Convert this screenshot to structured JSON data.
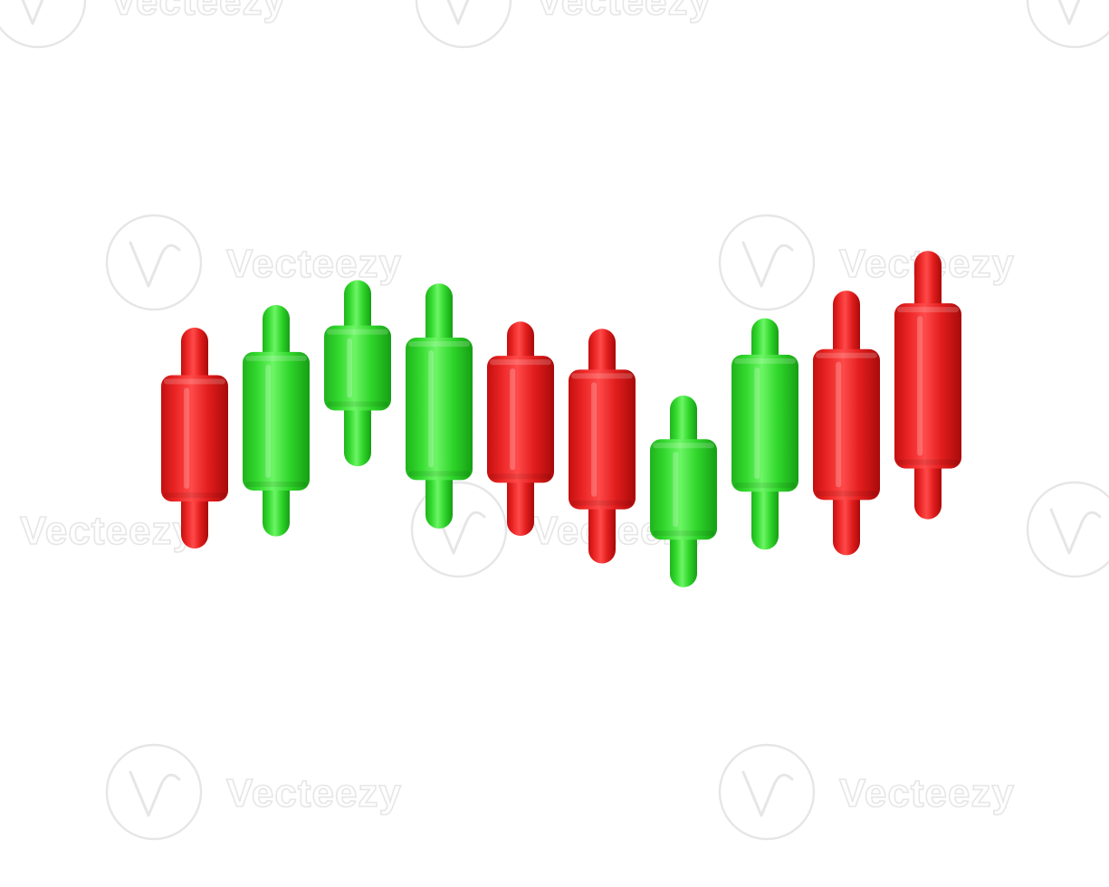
{
  "watermark": {
    "text": "Vecteezy"
  },
  "colors": {
    "up": "#2fd62a",
    "down": "#e21d1d",
    "background": "#ffffff"
  },
  "chart_data": {
    "type": "candlestick",
    "title": "",
    "xlabel": "",
    "ylabel": "",
    "ylim": [
      0,
      100
    ],
    "grid": false,
    "legend": "none",
    "candles": [
      {
        "open": 63.2,
        "high": 71.8,
        "low": 31.8,
        "close": 40.3,
        "direction": "down"
      },
      {
        "open": 42.3,
        "high": 75.9,
        "low": 34.0,
        "close": 67.4,
        "direction": "up"
      },
      {
        "open": 56.8,
        "high": 80.4,
        "low": 46.7,
        "close": 72.2,
        "direction": "up"
      },
      {
        "open": 44.2,
        "high": 79.8,
        "low": 35.4,
        "close": 70.0,
        "direction": "up"
      },
      {
        "open": 66.7,
        "high": 72.9,
        "low": 34.1,
        "close": 43.7,
        "direction": "down"
      },
      {
        "open": 64.2,
        "high": 71.6,
        "low": 29.1,
        "close": 38.9,
        "direction": "down"
      },
      {
        "open": 33.4,
        "high": 59.5,
        "low": 24.8,
        "close": 51.6,
        "direction": "up"
      },
      {
        "open": 42.1,
        "high": 73.5,
        "low": 31.6,
        "close": 66.9,
        "direction": "up"
      },
      {
        "open": 67.9,
        "high": 78.5,
        "low": 30.6,
        "close": 40.6,
        "direction": "down"
      },
      {
        "open": 76.2,
        "high": 85.7,
        "low": 37.1,
        "close": 46.3,
        "direction": "down"
      }
    ]
  }
}
